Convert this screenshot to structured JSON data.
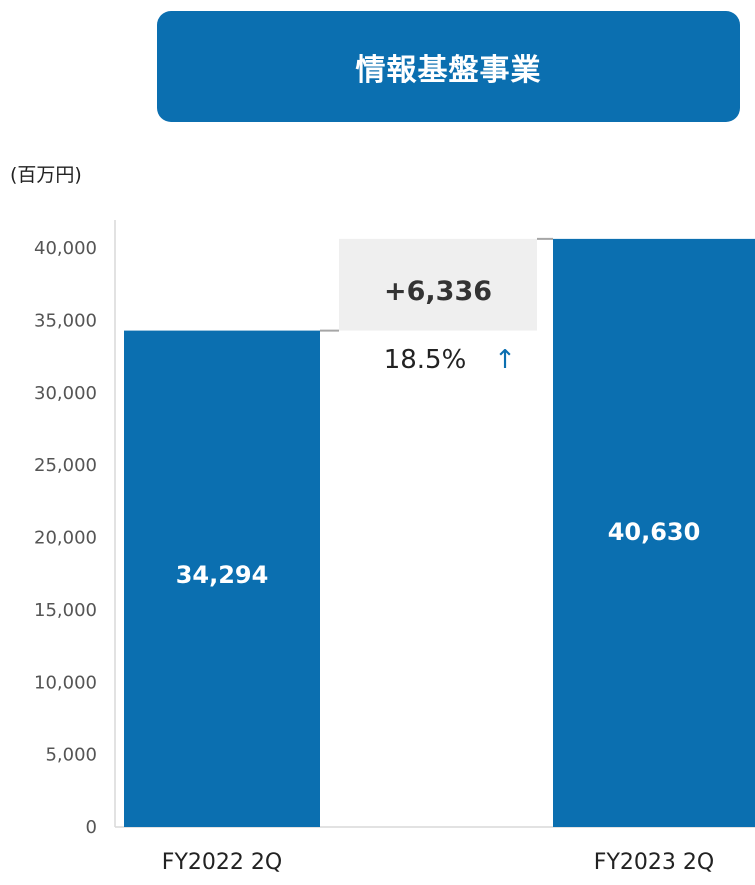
{
  "title": "情報基盤事業",
  "unit": "(百万円)",
  "colors": {
    "bar": "#0b6fb0",
    "banner": "#0b6fb0",
    "delta_box": "#efefef",
    "arrow": "#0b6fb0"
  },
  "chart_data": {
    "type": "bar",
    "categories": [
      "FY2022 2Q",
      "FY2023 2Q"
    ],
    "values": [
      34294,
      40630
    ],
    "value_labels": [
      "34,294",
      "40,630"
    ],
    "ylim": [
      0,
      40000
    ],
    "yticks": [
      0,
      5000,
      10000,
      15000,
      20000,
      25000,
      30000,
      35000,
      40000
    ],
    "ytick_labels": [
      "0",
      "5,000",
      "10,000",
      "15,000",
      "20,000",
      "25,000",
      "30,000",
      "35,000",
      "40,000"
    ],
    "grid": false,
    "difference": {
      "value_label": "+6,336",
      "percent_label": "18.5%",
      "arrow": "↑"
    }
  }
}
